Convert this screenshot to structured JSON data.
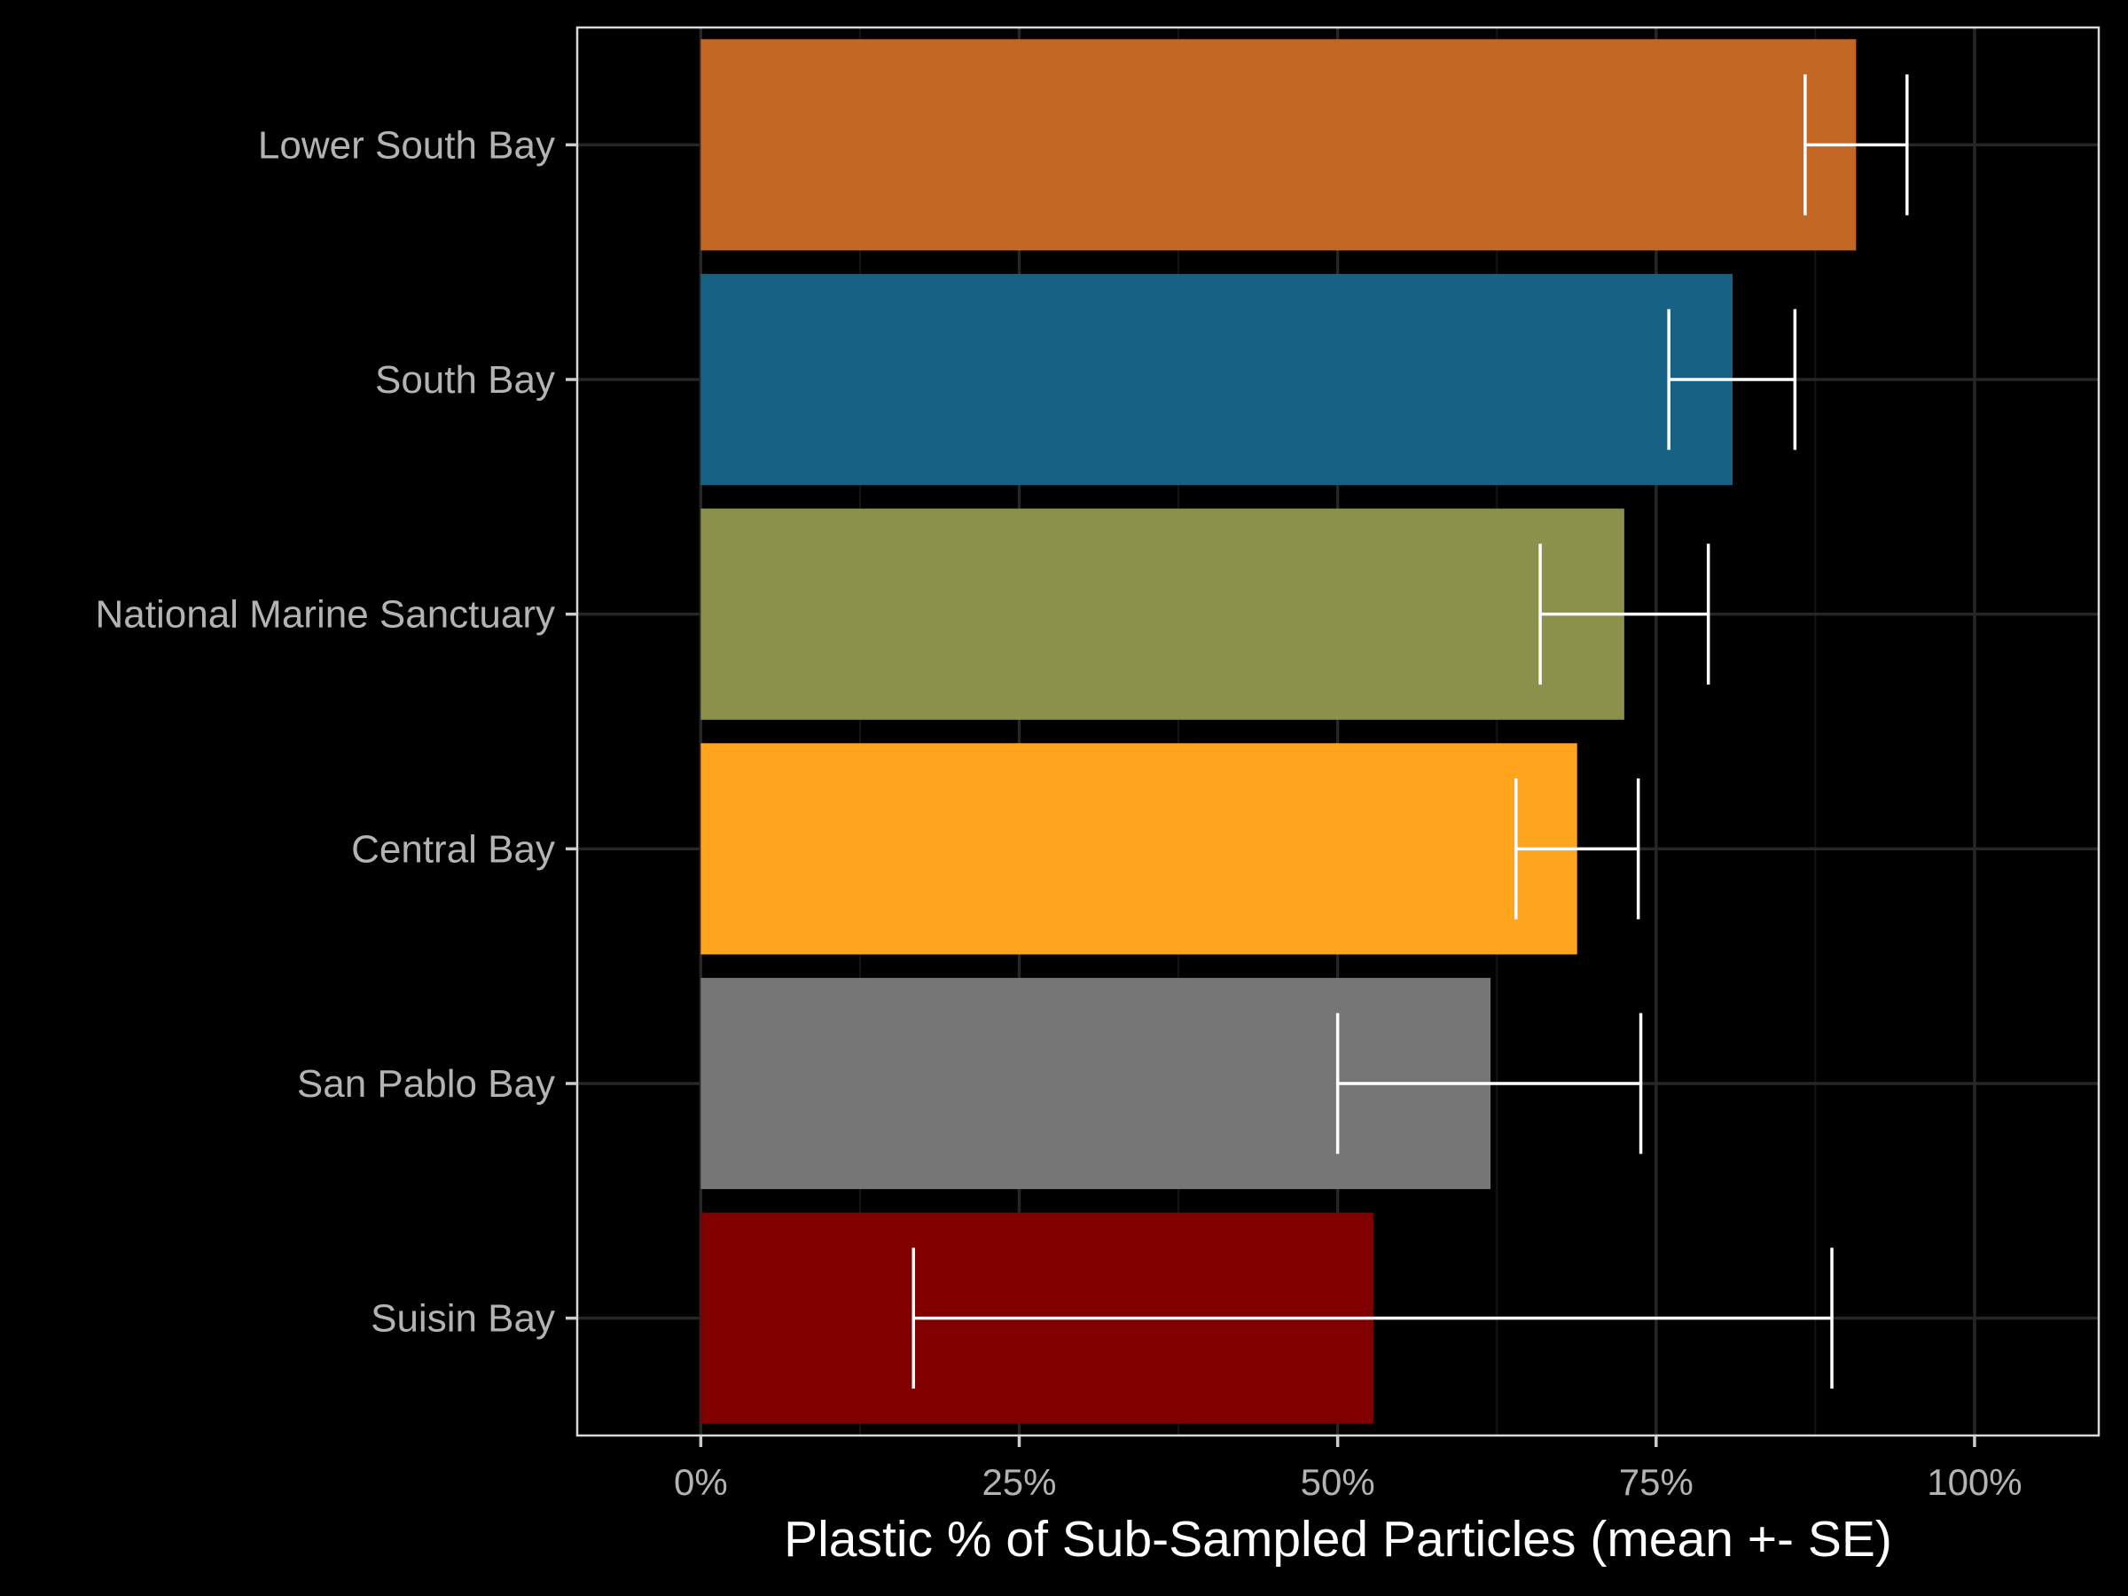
{
  "chart_data": {
    "type": "bar",
    "orientation": "horizontal",
    "title": "",
    "xlabel": "Plastic % of Sub-Sampled Particles (mean +- SE)",
    "ylabel": "",
    "xlim": [
      -0.097,
      1.0975
    ],
    "x_ticks": [
      0,
      0.25,
      0.5,
      0.75,
      1.0
    ],
    "x_tick_labels": [
      "0%",
      "25%",
      "50%",
      "75%",
      "100%"
    ],
    "grid": true,
    "legend": "none",
    "background": "#000000",
    "categories": [
      "Lower South Bay",
      "South Bay",
      "National Marine Sanctuary",
      "Central Bay",
      "San Pablo Bay",
      "Suisin Bay"
    ],
    "values": [
      0.907,
      0.81,
      0.725,
      0.688,
      0.62,
      0.528
    ],
    "error_low": [
      0.867,
      0.76,
      0.659,
      0.64,
      0.5,
      0.167
    ],
    "error_high": [
      0.947,
      0.859,
      0.791,
      0.736,
      0.738,
      0.888
    ],
    "colors": [
      "#C26724",
      "#176184",
      "#8B914B",
      "#FFA41C",
      "#767676",
      "#800000"
    ]
  }
}
